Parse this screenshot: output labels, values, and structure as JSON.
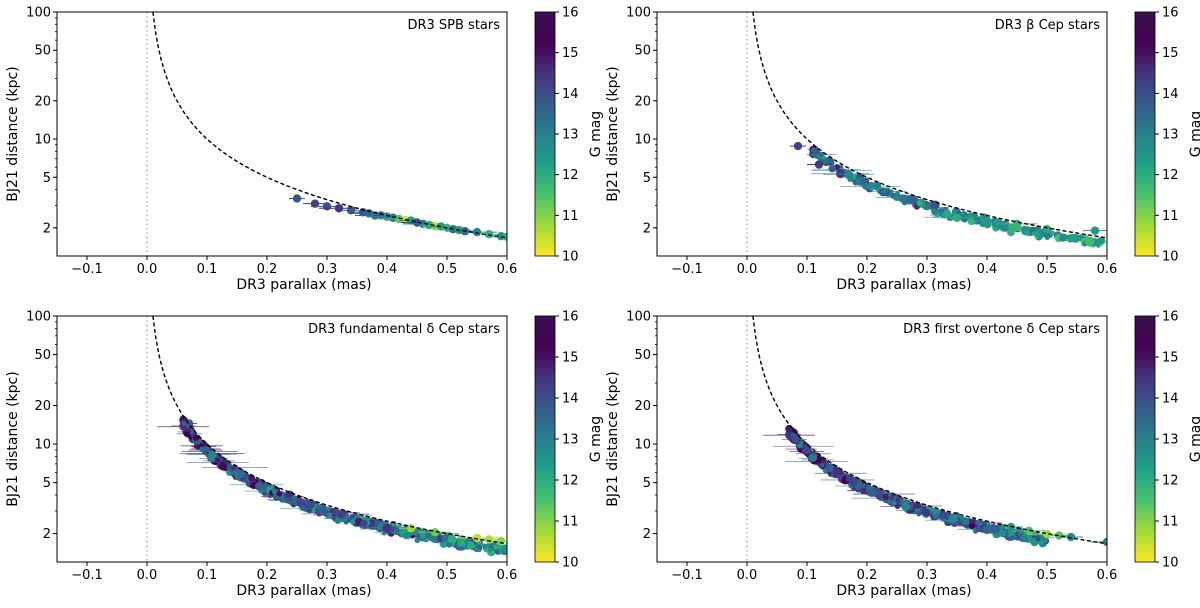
{
  "chart_data": [
    {
      "type": "scatter",
      "title": "DR3 SPB stars",
      "xlabel": "DR3 parallax (mas)",
      "ylabel": "BJ21 distance (kpc)",
      "xlim": [
        -0.15,
        0.6
      ],
      "ylim": [
        1.2,
        100
      ],
      "yscale": "log",
      "xticks": [
        "−0.1",
        "0.0",
        "0.1",
        "0.2",
        "0.3",
        "0.4",
        "0.5",
        "0.6"
      ],
      "yticks": [
        "2",
        "5",
        "10",
        "20",
        "50",
        "100"
      ],
      "colorbar": {
        "label": "G mag",
        "range": [
          10,
          16
        ],
        "ticks": [
          "10",
          "11",
          "12",
          "13",
          "14",
          "15",
          "16"
        ]
      },
      "reference_curve": "distance = 1 / parallax",
      "points": [
        [
          0.25,
          3.4,
          13.9
        ],
        [
          0.28,
          3.1,
          14.2
        ],
        [
          0.3,
          2.95,
          14.0
        ],
        [
          0.32,
          2.85,
          14.5
        ],
        [
          0.34,
          2.75,
          13.8
        ],
        [
          0.36,
          2.65,
          14.1
        ],
        [
          0.37,
          2.6,
          13.5
        ],
        [
          0.38,
          2.5,
          13.2
        ],
        [
          0.39,
          2.5,
          13.7
        ],
        [
          0.4,
          2.45,
          12.8
        ],
        [
          0.41,
          2.4,
          13.3
        ],
        [
          0.42,
          2.35,
          11.5
        ],
        [
          0.43,
          2.3,
          10.4
        ],
        [
          0.44,
          2.28,
          12.5
        ],
        [
          0.45,
          2.2,
          14.0
        ],
        [
          0.46,
          2.15,
          13.1
        ],
        [
          0.47,
          2.1,
          12.0
        ],
        [
          0.48,
          2.05,
          10.6
        ],
        [
          0.49,
          2.05,
          12.4
        ],
        [
          0.5,
          2.0,
          11.8
        ],
        [
          0.51,
          1.95,
          13.3
        ],
        [
          0.52,
          1.92,
          12.2
        ],
        [
          0.53,
          1.88,
          13.6
        ],
        [
          0.55,
          1.85,
          12.9
        ],
        [
          0.57,
          1.78,
          11.9
        ],
        [
          0.59,
          1.72,
          12.6
        ],
        [
          0.6,
          1.7,
          11.9
        ]
      ]
    },
    {
      "type": "scatter",
      "title": "DR3 β Cep stars",
      "xlabel": "DR3 parallax (mas)",
      "ylabel": "BJ21 distance (kpc)",
      "xlim": [
        -0.15,
        0.6
      ],
      "ylim": [
        1.2,
        100
      ],
      "yscale": "log",
      "xticks": [
        "−0.1",
        "0.0",
        "0.1",
        "0.2",
        "0.3",
        "0.4",
        "0.5",
        "0.6"
      ],
      "yticks": [
        "2",
        "5",
        "10",
        "20",
        "50",
        "100"
      ],
      "colorbar": {
        "label": "G mag",
        "range": [
          10,
          16
        ],
        "ticks": [
          "10",
          "11",
          "12",
          "13",
          "14",
          "15",
          "16"
        ]
      },
      "reference_curve": "distance = 1 / parallax",
      "cloud": {
        "parallax_range": [
          0.11,
          0.6
        ],
        "count": 230,
        "mag_range": [
          11.5,
          15.0
        ]
      },
      "points": [
        [
          0.085,
          8.8,
          14.2
        ],
        [
          0.12,
          6.3,
          14.4
        ],
        [
          0.35,
          2.4,
          12.0
        ],
        [
          0.45,
          2.15,
          11.8
        ],
        [
          0.5,
          1.95,
          12.1
        ],
        [
          0.58,
          1.9,
          12.5
        ]
      ]
    },
    {
      "type": "scatter",
      "title": "DR3 fundamental δ Cep stars",
      "xlabel": "DR3 parallax (mas)",
      "ylabel": "BJ21 distance (kpc)",
      "xlim": [
        -0.15,
        0.6
      ],
      "ylim": [
        1.2,
        100
      ],
      "yscale": "log",
      "xticks": [
        "−0.1",
        "0.0",
        "0.1",
        "0.2",
        "0.3",
        "0.4",
        "0.5",
        "0.6"
      ],
      "yticks": [
        "2",
        "5",
        "10",
        "20",
        "50",
        "100"
      ],
      "colorbar": {
        "label": "G mag",
        "range": [
          10,
          16
        ],
        "ticks": [
          "10",
          "11",
          "12",
          "13",
          "14",
          "15",
          "16"
        ]
      },
      "reference_curve": "distance = 1 / parallax",
      "cloud": {
        "parallax_range": [
          0.06,
          0.6
        ],
        "count": 700,
        "mag_range": [
          12.0,
          16.0
        ]
      },
      "points": [
        [
          0.07,
          14.5,
          13.8
        ],
        [
          0.44,
          2.2,
          10.8
        ],
        [
          0.48,
          2.05,
          11.2
        ],
        [
          0.55,
          1.85,
          10.5
        ],
        [
          0.57,
          1.8,
          10.7
        ],
        [
          0.59,
          1.75,
          11.0
        ]
      ]
    },
    {
      "type": "scatter",
      "title": "DR3 first overtone δ Cep stars",
      "xlabel": "DR3 parallax (mas)",
      "ylabel": "BJ21 distance (kpc)",
      "xlim": [
        -0.15,
        0.6
      ],
      "ylim": [
        1.2,
        100
      ],
      "yscale": "log",
      "xticks": [
        "−0.1",
        "0.0",
        "0.1",
        "0.2",
        "0.3",
        "0.4",
        "0.5",
        "0.6"
      ],
      "yticks": [
        "2",
        "5",
        "10",
        "20",
        "50",
        "100"
      ],
      "colorbar": {
        "label": "G mag",
        "range": [
          10,
          16
        ],
        "ticks": [
          "10",
          "11",
          "12",
          "13",
          "14",
          "15",
          "16"
        ]
      },
      "reference_curve": "distance = 1 / parallax",
      "cloud": {
        "parallax_range": [
          0.07,
          0.5
        ],
        "count": 520,
        "mag_range": [
          12.5,
          16.0
        ]
      },
      "points": [
        [
          0.08,
          11.0,
          14.0
        ],
        [
          0.44,
          2.25,
          12.5
        ],
        [
          0.47,
          2.1,
          11.5
        ],
        [
          0.5,
          1.98,
          10.8
        ],
        [
          0.52,
          1.93,
          11.4
        ],
        [
          0.54,
          1.88,
          12.8
        ],
        [
          0.6,
          1.72,
          13.0
        ]
      ]
    }
  ]
}
